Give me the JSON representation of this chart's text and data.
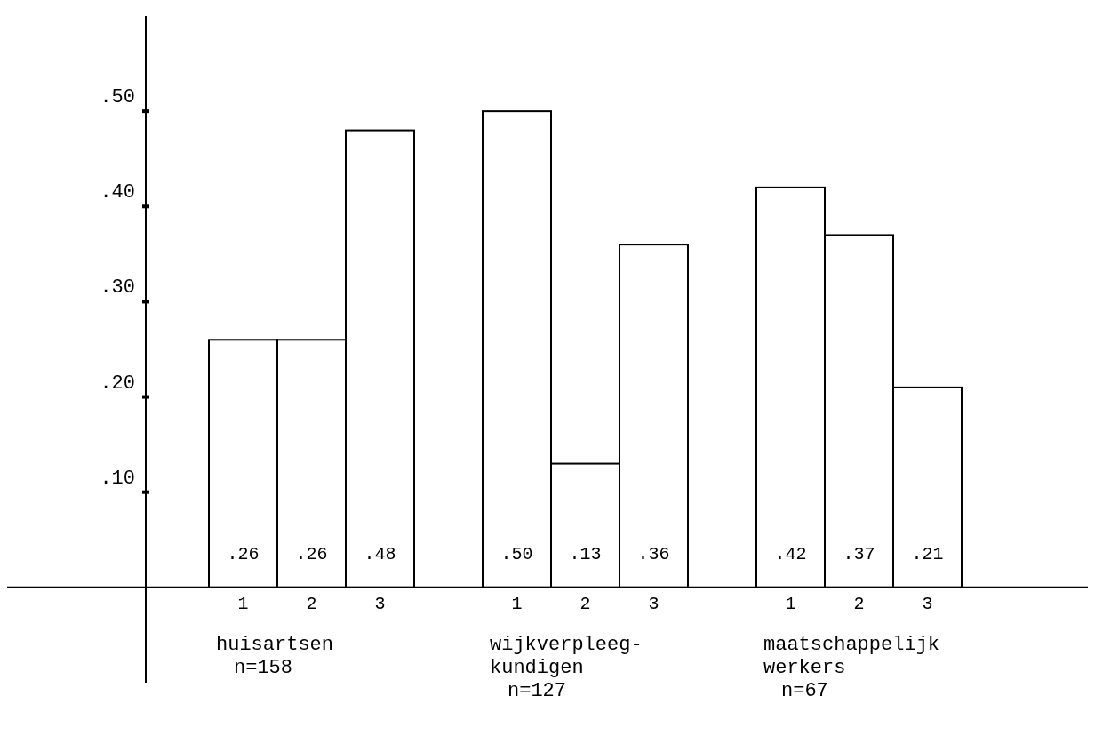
{
  "chart_data": {
    "type": "bar",
    "categories": [
      "1",
      "2",
      "3",
      null,
      "1",
      "2",
      "3",
      null,
      "1",
      "2",
      "3"
    ],
    "values": [
      0.26,
      0.26,
      0.48,
      null,
      0.5,
      0.13,
      0.36,
      null,
      0.42,
      0.37,
      0.21
    ],
    "color": "#ffffff",
    "value_labels": [
      ".26",
      ".26",
      ".48",
      null,
      ".50",
      ".13",
      ".36",
      null,
      ".42",
      ".37",
      ".21"
    ],
    "ylim": [
      -0.1,
      0.6
    ],
    "yticks": [
      {
        "value": 0.1,
        "label": ".10"
      },
      {
        "value": 0.2,
        "label": ".20"
      },
      {
        "value": 0.3,
        "label": ".30"
      },
      {
        "value": 0.4,
        "label": ".40"
      },
      {
        "value": 0.5,
        "label": ".50"
      }
    ],
    "grid": false,
    "annotations": [
      "huisartsen\nn=158",
      "wijkverpleeg-\nkundigen\nn=127",
      "maatschappelijk\nwerkers\nn=67"
    ]
  }
}
